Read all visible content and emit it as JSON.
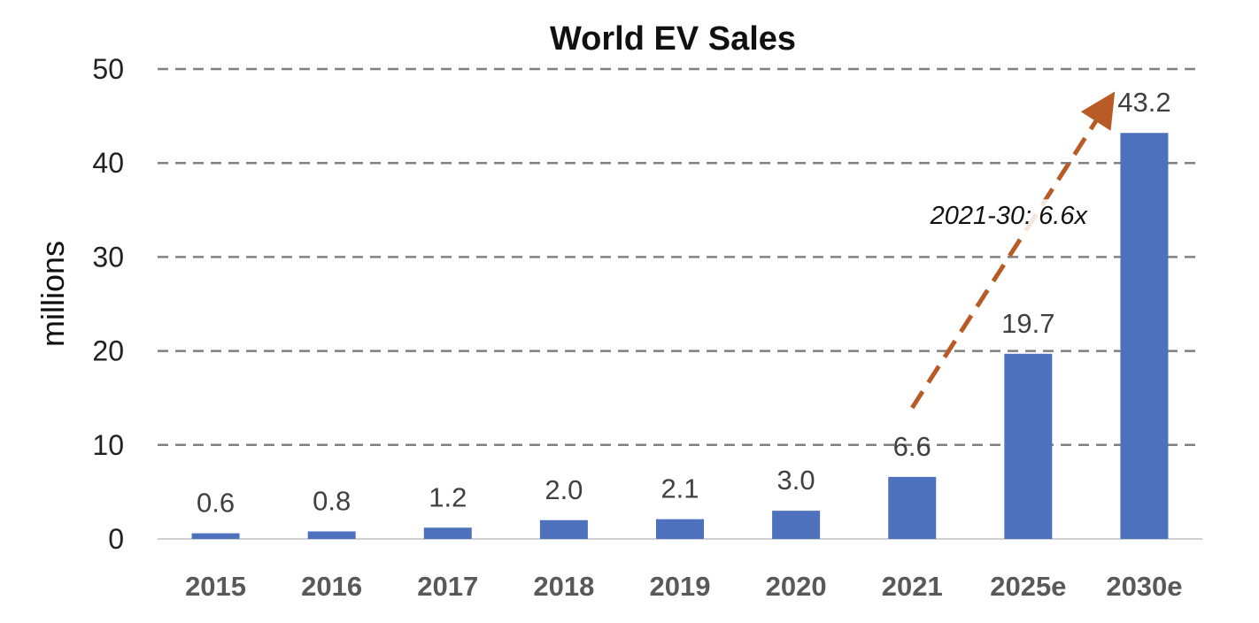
{
  "chart_data": {
    "type": "bar",
    "title": "World EV Sales",
    "xlabel": "",
    "ylabel": "millions",
    "ylim": [
      0,
      50
    ],
    "yticks": [
      0,
      10,
      20,
      30,
      40,
      50
    ],
    "grid": true,
    "legend": "none",
    "categories": [
      "2015",
      "2016",
      "2017",
      "2018",
      "2019",
      "2020",
      "2021",
      "2025e",
      "2030e"
    ],
    "values": [
      0.6,
      0.8,
      1.2,
      2.0,
      2.1,
      3.0,
      6.6,
      19.7,
      43.2
    ],
    "data_labels": [
      "0.6",
      "0.8",
      "1.2",
      "2.0",
      "2.1",
      "3.0",
      "6.6",
      "19.7",
      "43.2"
    ],
    "colors": {
      "bar": "#4E71BE",
      "grid": "#808080",
      "arrow": "#B85B26"
    },
    "annotation": {
      "text": "2021-30: 6.6x",
      "from_category": "2021",
      "to_category": "2030e"
    }
  }
}
